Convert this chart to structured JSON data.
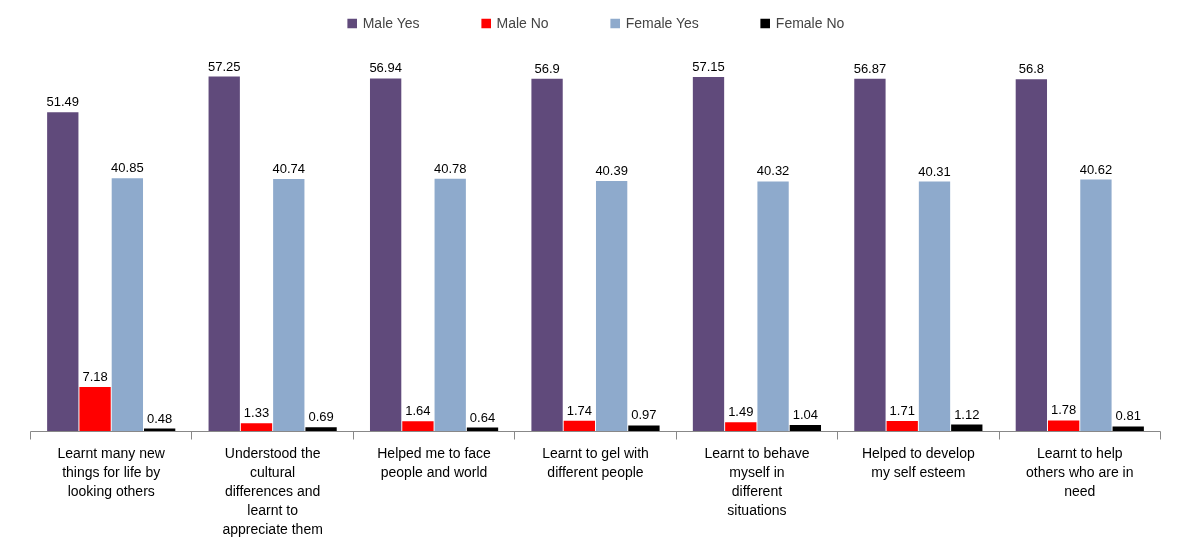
{
  "chart_data": {
    "type": "bar",
    "categories": [
      "Learnt many new things for life by looking others",
      "Understood the cultural differences and learnt to appreciate them",
      "Helped me to face people and world",
      "Learnt to gel with different people",
      "Learnt to behave myself in different situations",
      "Helped to develop my self esteem",
      "Learnt to help others who are in need"
    ],
    "series": [
      {
        "name": "Male Yes",
        "color": "#604a7b",
        "values": [
          51.49,
          57.25,
          56.94,
          56.9,
          57.15,
          56.87,
          56.8
        ]
      },
      {
        "name": "Male No",
        "color": "#ff0000",
        "values": [
          7.18,
          1.33,
          1.64,
          1.74,
          1.49,
          1.71,
          1.78
        ]
      },
      {
        "name": "Female Yes",
        "color": "#8eaacc",
        "values": [
          40.85,
          40.74,
          40.78,
          40.39,
          40.32,
          40.31,
          40.62
        ]
      },
      {
        "name": "Female No",
        "color": "#000000",
        "values": [
          0.48,
          0.69,
          0.64,
          0.97,
          1.04,
          1.12,
          0.81
        ]
      }
    ],
    "data_labels": true,
    "legend": "top",
    "grid": false
  }
}
